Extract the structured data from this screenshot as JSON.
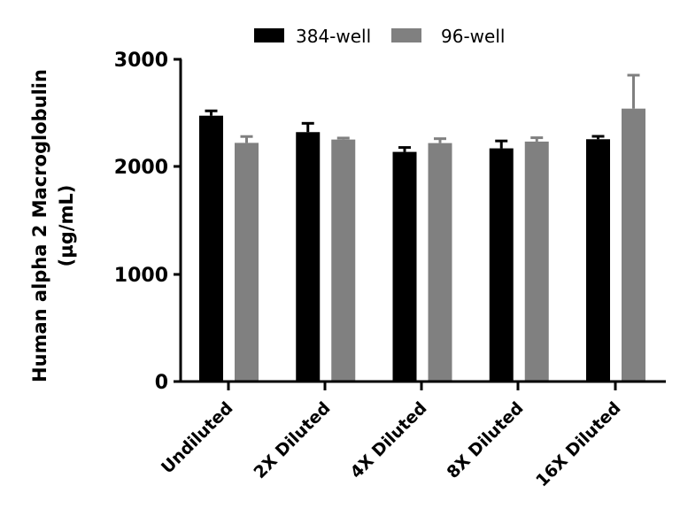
{
  "chart_data": {
    "type": "bar",
    "title": "",
    "xlabel": "",
    "ylabel": "Human alpha 2 Macroglobulin",
    "ylabel_units": "(µg/mL)",
    "ylim": [
      0,
      3000
    ],
    "yticks": [
      "0",
      "1000",
      "2000",
      "3000"
    ],
    "grid": false,
    "legend_position": "top",
    "categories": [
      "Undiluted",
      "2X Diluted",
      "4X Diluted",
      "8X Diluted",
      "16X Diluted"
    ],
    "series": [
      {
        "name": "384-well",
        "color": "#000000",
        "values": [
          2475,
          2322,
          2138,
          2171,
          2256
        ],
        "error": [
          45,
          82,
          41,
          69,
          27
        ]
      },
      {
        "name": "96-well",
        "color": "#808080",
        "values": [
          2222,
          2253,
          2220,
          2234,
          2541
        ],
        "error": [
          59,
          14,
          41,
          36,
          311
        ]
      }
    ]
  }
}
